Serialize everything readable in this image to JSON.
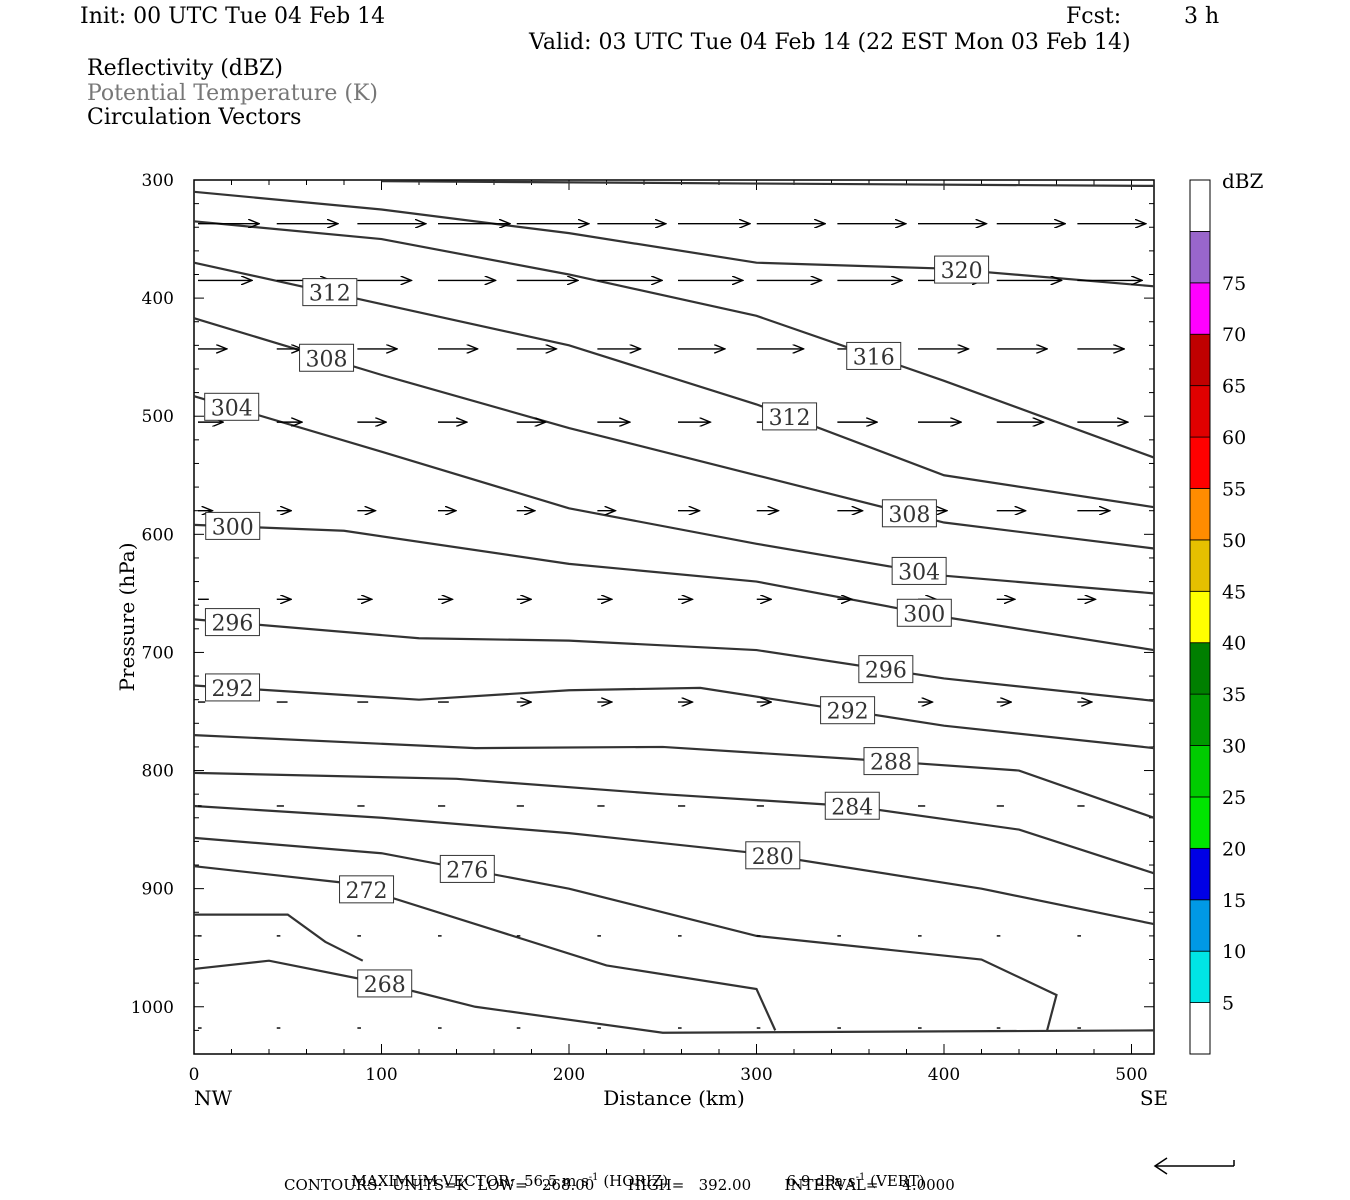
{
  "header": {
    "init": "Init: 00 UTC Tue 04 Feb 14",
    "fcst_label": "Fcst:",
    "fcst_value": "3 h",
    "valid": "Valid: 03 UTC Tue 04 Feb 14 (22 EST Mon 03 Feb 14)"
  },
  "fields": {
    "f1": "Reflectivity (dBZ)",
    "f2": "Potential Temperature (K)",
    "f3": "Circulation Vectors"
  },
  "colors": {
    "contour": "#333333",
    "field2_text": "#777777",
    "bins": [
      "#ffffff",
      "#00e5e5",
      "#0099e5",
      "#0000e5",
      "#00e500",
      "#00cc00",
      "#009900",
      "#007f00",
      "#ffff00",
      "#e5c000",
      "#ff8c00",
      "#ff0000",
      "#e00000",
      "#c00000",
      "#ff00ff",
      "#9966cc",
      "#ffffff"
    ]
  },
  "chart_data": {
    "type": "line",
    "xlabel": "Distance (km)",
    "ylabel": "Pressure (hPa)",
    "xlim": [
      0,
      512
    ],
    "ylim": [
      1040,
      300
    ],
    "y_scale": "linear, pressure decreasing upward",
    "x_ticks": [
      "0",
      "100",
      "200",
      "300",
      "400",
      "500"
    ],
    "y_ticks": [
      "300",
      "400",
      "500",
      "600",
      "700",
      "800",
      "900",
      "1000"
    ],
    "x_end_labels": {
      "left": "NW",
      "right": "SE"
    },
    "contours": [
      {
        "label": "320",
        "points": [
          [
            0,
            310
          ],
          [
            100,
            325
          ],
          [
            200,
            345
          ],
          [
            300,
            370
          ],
          [
            400,
            375
          ],
          [
            512,
            390
          ]
        ]
      },
      {
        "label": "316",
        "points": [
          [
            0,
            335
          ],
          [
            100,
            350
          ],
          [
            200,
            380
          ],
          [
            300,
            415
          ],
          [
            400,
            470
          ],
          [
            512,
            535
          ]
        ]
      },
      {
        "label": "312",
        "points": [
          [
            0,
            370
          ],
          [
            100,
            405
          ],
          [
            200,
            440
          ],
          [
            300,
            490
          ],
          [
            400,
            550
          ],
          [
            512,
            577
          ]
        ]
      },
      {
        "label": "308",
        "points": [
          [
            0,
            417
          ],
          [
            100,
            465
          ],
          [
            200,
            510
          ],
          [
            300,
            550
          ],
          [
            400,
            590
          ],
          [
            512,
            612
          ]
        ]
      },
      {
        "label": "304",
        "points": [
          [
            0,
            483
          ],
          [
            100,
            530
          ],
          [
            200,
            578
          ],
          [
            300,
            608
          ],
          [
            400,
            635
          ],
          [
            512,
            650
          ]
        ]
      },
      {
        "label": "300",
        "points": [
          [
            0,
            592
          ],
          [
            80,
            597
          ],
          [
            200,
            625
          ],
          [
            300,
            640
          ],
          [
            400,
            670
          ],
          [
            512,
            698
          ]
        ]
      },
      {
        "label": "296",
        "points": [
          [
            0,
            672
          ],
          [
            120,
            688
          ],
          [
            200,
            690
          ],
          [
            300,
            698
          ],
          [
            400,
            722
          ],
          [
            512,
            741
          ]
        ]
      },
      {
        "label": "292",
        "points": [
          [
            0,
            728
          ],
          [
            120,
            740
          ],
          [
            200,
            732
          ],
          [
            270,
            730
          ],
          [
            400,
            762
          ],
          [
            512,
            781
          ]
        ]
      },
      {
        "label": "288",
        "points": [
          [
            0,
            770
          ],
          [
            150,
            781
          ],
          [
            250,
            780
          ],
          [
            350,
            790
          ],
          [
            440,
            800
          ],
          [
            512,
            840
          ]
        ]
      },
      {
        "label": "284",
        "points": [
          [
            0,
            802
          ],
          [
            140,
            807
          ],
          [
            250,
            820
          ],
          [
            350,
            830
          ],
          [
            440,
            850
          ],
          [
            512,
            887
          ]
        ]
      },
      {
        "label": "280",
        "points": [
          [
            0,
            830
          ],
          [
            100,
            840
          ],
          [
            200,
            853
          ],
          [
            300,
            870
          ],
          [
            420,
            900
          ],
          [
            512,
            930
          ]
        ]
      },
      {
        "label": "276",
        "points": [
          [
            0,
            857
          ],
          [
            100,
            870
          ],
          [
            200,
            900
          ],
          [
            300,
            940
          ],
          [
            420,
            960
          ],
          [
            460,
            990
          ],
          [
            455,
            1020
          ]
        ]
      },
      {
        "label": "272",
        "points": [
          [
            0,
            881
          ],
          [
            80,
            895
          ],
          [
            160,
            935
          ],
          [
            220,
            965
          ],
          [
            300,
            985
          ],
          [
            310,
            1020
          ]
        ]
      },
      {
        "label": "268",
        "points": [
          [
            0,
            968
          ],
          [
            40,
            961
          ],
          [
            100,
            980
          ],
          [
            150,
            1000
          ],
          [
            250,
            1022
          ],
          [
            512,
            1020
          ]
        ]
      },
      {
        "label": "",
        "points": [
          [
            0,
            922
          ],
          [
            50,
            922
          ],
          [
            70,
            945
          ],
          [
            90,
            961
          ]
        ]
      },
      {
        "label": "",
        "points": [
          [
            100,
            301
          ],
          [
            300,
            303
          ],
          [
            512,
            305
          ]
        ]
      }
    ],
    "vectors": {
      "max_horiz": "56.5 m s",
      "max_vert": "6.9 dPa s",
      "rows": [
        {
          "p": 337,
          "u": [
            34,
            34,
            38,
            40,
            40,
            38,
            40,
            38,
            38,
            38,
            38,
            38
          ]
        },
        {
          "p": 385,
          "u": [
            30,
            30,
            30,
            32,
            34,
            36,
            36,
            36,
            36,
            36,
            36,
            36
          ]
        },
        {
          "p": 443,
          "u": [
            16,
            14,
            22,
            22,
            22,
            24,
            26,
            26,
            28,
            28,
            28,
            26
          ]
        },
        {
          "p": 505,
          "u": [
            14,
            14,
            16,
            16,
            16,
            18,
            18,
            20,
            22,
            24,
            26,
            28
          ]
        },
        {
          "p": 580,
          "u": [
            8,
            8,
            10,
            10,
            10,
            10,
            12,
            12,
            14,
            16,
            16,
            18
          ]
        },
        {
          "p": 655,
          "u": [
            6,
            8,
            8,
            8,
            8,
            8,
            8,
            8,
            8,
            10,
            10,
            10
          ]
        },
        {
          "p": 742,
          "u": [
            4,
            6,
            6,
            6,
            8,
            8,
            8,
            8,
            8,
            8,
            8,
            8
          ]
        },
        {
          "p": 830,
          "u": [
            2,
            4,
            4,
            4,
            4,
            4,
            4,
            4,
            4,
            4,
            4,
            4
          ]
        },
        {
          "p": 940,
          "u": [
            2,
            2,
            2,
            2,
            2,
            2,
            2,
            2,
            2,
            2,
            2,
            2
          ]
        },
        {
          "p": 1018,
          "u": [
            2,
            2,
            2,
            2,
            2,
            2,
            2,
            2,
            2,
            2,
            2,
            2
          ]
        }
      ],
      "x": [
        0,
        42,
        85,
        128,
        170,
        213,
        256,
        298,
        341,
        384,
        426,
        469
      ]
    },
    "colorbar": {
      "unit": "dBZ",
      "labels": [
        "5",
        "10",
        "15",
        "20",
        "25",
        "30",
        "35",
        "40",
        "45",
        "50",
        "55",
        "60",
        "65",
        "70",
        "75"
      ]
    }
  },
  "footer": {
    "max_vector_label": "MAXIMUM VECTOR:",
    "horiz_value": "56.5 m s",
    "horiz_exp": "-1",
    "horiz_tag": "(HORIZ)",
    "vert_value": "6.9 dPa s",
    "vert_exp": "-1",
    "vert_tag": "(VERT)",
    "contours_line": "CONTOURS:  UNITS=K  LOW=   268.00       HIGH=   392.00       INTERVAL=     4.0000"
  }
}
